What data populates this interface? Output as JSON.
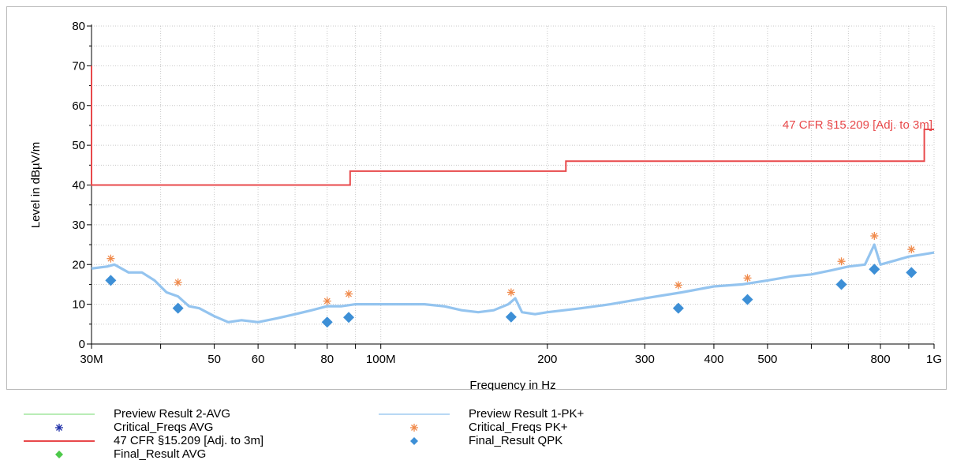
{
  "chart_data": {
    "type": "line",
    "title": "",
    "xlabel": "Frequency in Hz",
    "ylabel": "Level in dBµV/m",
    "xscale": "log",
    "xlim": [
      30000000,
      1000000000
    ],
    "ylim": [
      0,
      80
    ],
    "yticks": [
      0,
      10,
      20,
      30,
      40,
      50,
      60,
      70,
      80
    ],
    "xticks": [
      {
        "value": 30000000,
        "label": "30M"
      },
      {
        "value": 50000000,
        "label": "50"
      },
      {
        "value": 60000000,
        "label": "60"
      },
      {
        "value": 80000000,
        "label": "80"
      },
      {
        "value": 100000000,
        "label": "100M"
      },
      {
        "value": 200000000,
        "label": "200"
      },
      {
        "value": 300000000,
        "label": "300"
      },
      {
        "value": 400000000,
        "label": "400"
      },
      {
        "value": 500000000,
        "label": "500"
      },
      {
        "value": 800000000,
        "label": "800"
      },
      {
        "value": 1000000000,
        "label": "1G"
      }
    ],
    "grid": true,
    "legend_position": "bottom",
    "limit_label": "47 CFR §15.209 [Adj. to 3m]",
    "series": [
      {
        "name": "47 CFR §15.209 [Adj. to 3m]",
        "kind": "limit-line",
        "color": "#e8494b",
        "x": [
          30000000,
          30000000,
          88000000,
          88000000,
          216000000,
          216000000,
          960000000,
          960000000,
          1000000000
        ],
        "y": [
          70,
          40,
          40,
          43.5,
          43.5,
          46,
          46,
          54,
          54
        ]
      },
      {
        "name": "Preview Result 1-PK+",
        "kind": "trace",
        "color": "#8ec1ee",
        "x": [
          30000000,
          32000000,
          33000000,
          35000000,
          37000000,
          39000000,
          41000000,
          43000000,
          45000000,
          47000000,
          50000000,
          53000000,
          56000000,
          60000000,
          65000000,
          70000000,
          75000000,
          80000000,
          85000000,
          90000000,
          95000000,
          100000000,
          110000000,
          120000000,
          130000000,
          140000000,
          150000000,
          160000000,
          170000000,
          175000000,
          180000000,
          190000000,
          200000000,
          230000000,
          260000000,
          300000000,
          350000000,
          400000000,
          450000000,
          500000000,
          550000000,
          600000000,
          650000000,
          700000000,
          750000000,
          780000000,
          800000000,
          850000000,
          900000000,
          950000000,
          1000000000
        ],
        "y": [
          19,
          19.5,
          20,
          18,
          18,
          16,
          13,
          12,
          9.5,
          9,
          7,
          5.5,
          6,
          5.5,
          6.5,
          7.5,
          8.5,
          9.5,
          9.5,
          10,
          10,
          10,
          10,
          10,
          9.5,
          8.5,
          8,
          8.5,
          10,
          11.5,
          8,
          7.5,
          8,
          9,
          10,
          11.5,
          13,
          14.5,
          15,
          16,
          17,
          17.5,
          18.5,
          19.5,
          20,
          25,
          20,
          21,
          22,
          22.5,
          23
        ]
      },
      {
        "name": "Critical_Freqs PK+",
        "kind": "markers",
        "marker": "asterisk",
        "color": "#f08a4b",
        "x": [
          32500000,
          43000000,
          80000000,
          87500000,
          172000000,
          345000000,
          460000000,
          680000000,
          780000000,
          910000000
        ],
        "y": [
          21.5,
          15.5,
          10.8,
          12.6,
          13,
          14.8,
          16.6,
          20.8,
          27.2,
          23.8
        ]
      },
      {
        "name": "Final_Result QPK",
        "kind": "markers",
        "marker": "diamond",
        "color": "#3d8fd6",
        "x": [
          32500000,
          43000000,
          80000000,
          87500000,
          172000000,
          345000000,
          460000000,
          680000000,
          780000000,
          910000000
        ],
        "y": [
          16,
          9,
          5.5,
          6.7,
          6.8,
          9,
          11.2,
          15,
          18.8,
          18
        ]
      }
    ],
    "legend": [
      {
        "label": "Preview Result 2-AVG",
        "symbol": "line",
        "color": "#8fe08a"
      },
      {
        "label": "Preview Result 1-PK+",
        "symbol": "line",
        "color": "#8ec1ee"
      },
      {
        "label": "Critical_Freqs AVG",
        "symbol": "asterisk",
        "color": "#1f2fa8"
      },
      {
        "label": "Critical_Freqs PK+",
        "symbol": "asterisk",
        "color": "#f08a4b"
      },
      {
        "label": "47 CFR §15.209 [Adj. to 3m]",
        "symbol": "line",
        "color": "#e8494b"
      },
      {
        "label": "Final_Result QPK",
        "symbol": "diamond",
        "color": "#3d8fd6"
      },
      {
        "label": "Final_Result AVG",
        "symbol": "diamond",
        "color": "#4dc94a"
      }
    ]
  }
}
